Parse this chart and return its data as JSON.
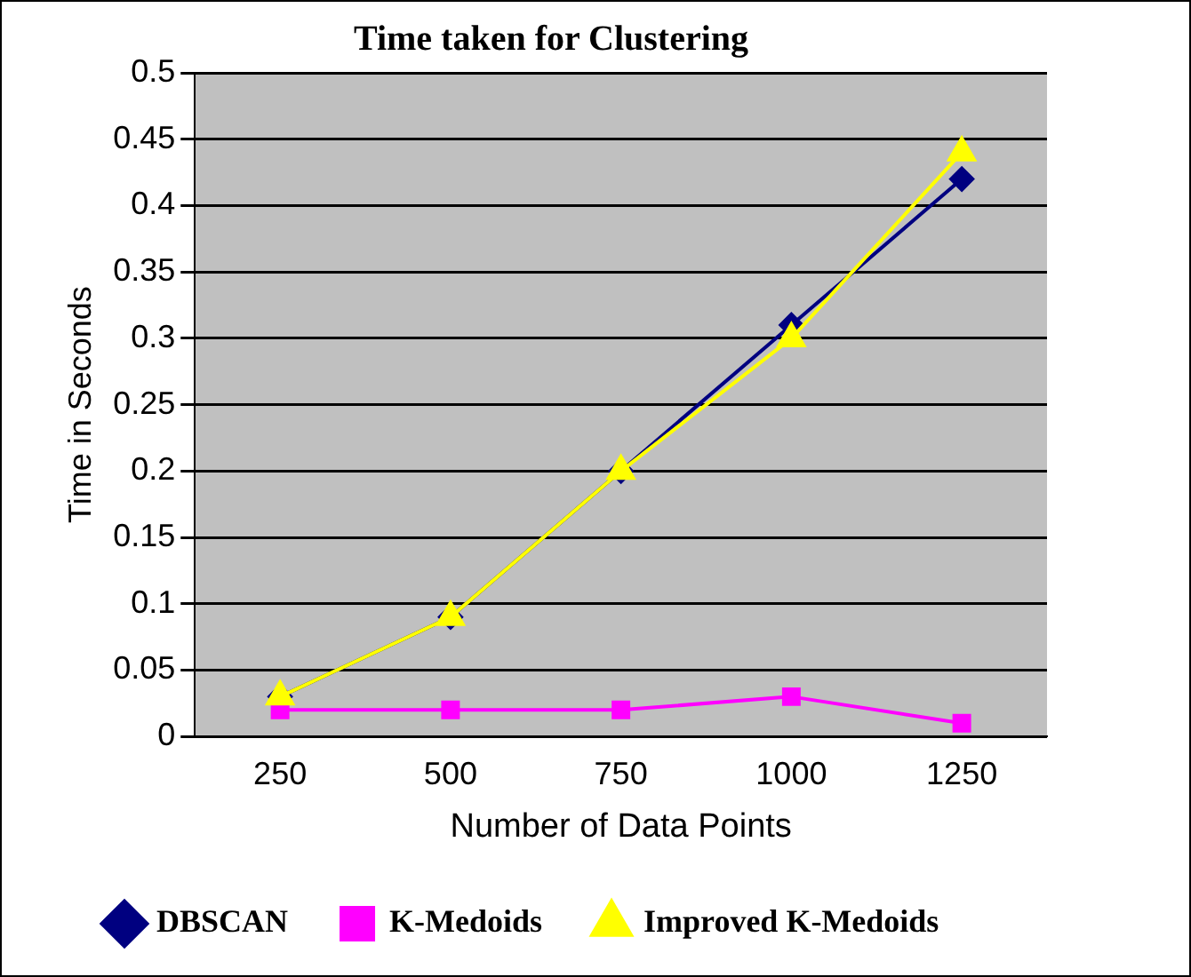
{
  "chart_data": {
    "type": "line",
    "title": "Time taken for Clustering",
    "xlabel": "Number of Data Points",
    "ylabel": "Time in Seconds",
    "categories": [
      "250",
      "500",
      "750",
      "1000",
      "1250"
    ],
    "series": [
      {
        "name": "DBSCAN",
        "color": "#000080",
        "marker": "diamond",
        "values": [
          0.03,
          0.09,
          0.2,
          0.31,
          0.42
        ]
      },
      {
        "name": "K-Medoids",
        "color": "#ff00ff",
        "marker": "square",
        "values": [
          0.02,
          0.02,
          0.02,
          0.03,
          0.01
        ]
      },
      {
        "name": "Improved K-Medoids",
        "color": "#ffff00",
        "marker": "triangle",
        "values": [
          0.03,
          0.09,
          0.2,
          0.3,
          0.44
        ]
      }
    ],
    "ylim": [
      0,
      0.5
    ],
    "yticks": [
      0,
      0.05,
      0.1,
      0.15,
      0.2,
      0.25,
      0.3,
      0.35,
      0.4,
      0.45,
      0.5
    ],
    "grid": "y",
    "legend": "bottom",
    "line_style": "solid"
  }
}
